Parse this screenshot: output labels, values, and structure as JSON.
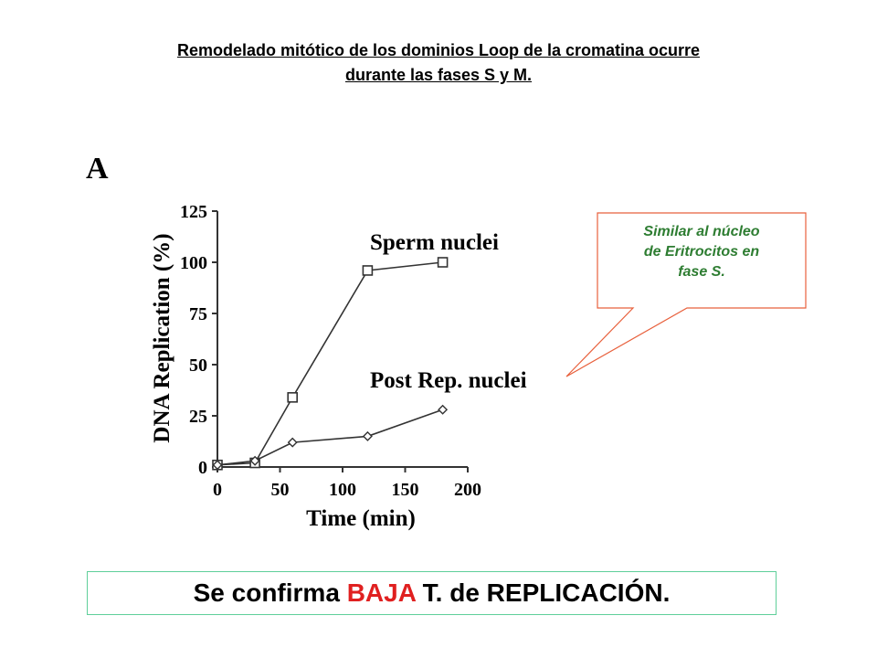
{
  "title_line1": "Remodelado mitótico de los dominios Loop de la cromatina ocurre",
  "title_line2": "durante las fases S y M.",
  "panel_label": "A",
  "callout": {
    "line1": "Similar al núcleo",
    "line2": "de Eritrocitos en",
    "line3": "fase S.",
    "text_color": "#2e7d32",
    "border_color": "#e8603c"
  },
  "conclusion": {
    "prefix": "Se confirma ",
    "highlight": "BAJA",
    "suffix": " T. de REPLICACIÓN.",
    "highlight_color": "#e02020",
    "border_color": "#5fcf9a"
  },
  "chart_data": {
    "type": "line",
    "xlabel": "Time (min)",
    "ylabel": "DNA Replication (%)",
    "xlim": [
      0,
      200
    ],
    "ylim": [
      0,
      125
    ],
    "xticks": [
      "0",
      "50",
      "100",
      "150",
      "200"
    ],
    "yticks": [
      "0",
      "25",
      "50",
      "75",
      "100",
      "125"
    ],
    "grid": false,
    "series": [
      {
        "name": "Sperm nuclei",
        "marker": "square",
        "x": [
          0,
          30,
          60,
          120,
          180
        ],
        "y": [
          1,
          2,
          34,
          96,
          100
        ]
      },
      {
        "name": "Post Rep. nuclei",
        "marker": "diamond",
        "x": [
          0,
          30,
          60,
          120,
          180
        ],
        "y": [
          1,
          3,
          12,
          15,
          28
        ]
      }
    ]
  }
}
